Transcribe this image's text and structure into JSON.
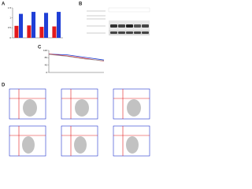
{
  "panel_labels": [
    "A",
    "B",
    "C",
    "D"
  ],
  "chart_data": [
    {
      "type": "bar",
      "categories": [
        null,
        null,
        null,
        null
      ],
      "series": [
        {
          "color": "#e31a1c",
          "values": [
            0.6,
            0.62,
            0.55,
            0.57
          ]
        },
        {
          "color": "#1f3fd6",
          "values": [
            1.2,
            1.3,
            1.25,
            1.3
          ]
        }
      ],
      "ylim": [
        0,
        1.5
      ],
      "yticks": [
        0,
        0.5,
        1,
        1.5
      ]
    },
    {
      "type": "line",
      "x": [
        0,
        1,
        2,
        3
      ],
      "xlim": [
        0,
        3
      ],
      "series": [
        {
          "color": "#1f3fd6",
          "values": [
            100,
            96,
            82,
            68
          ]
        },
        {
          "color": "#e31a1c",
          "values": [
            100,
            90,
            76,
            62
          ]
        },
        {
          "color": "#999999",
          "values": [
            98,
            88,
            73,
            64
          ]
        }
      ],
      "ylim": [
        0,
        120
      ],
      "yticks": [
        0,
        40,
        80,
        120
      ]
    }
  ]
}
